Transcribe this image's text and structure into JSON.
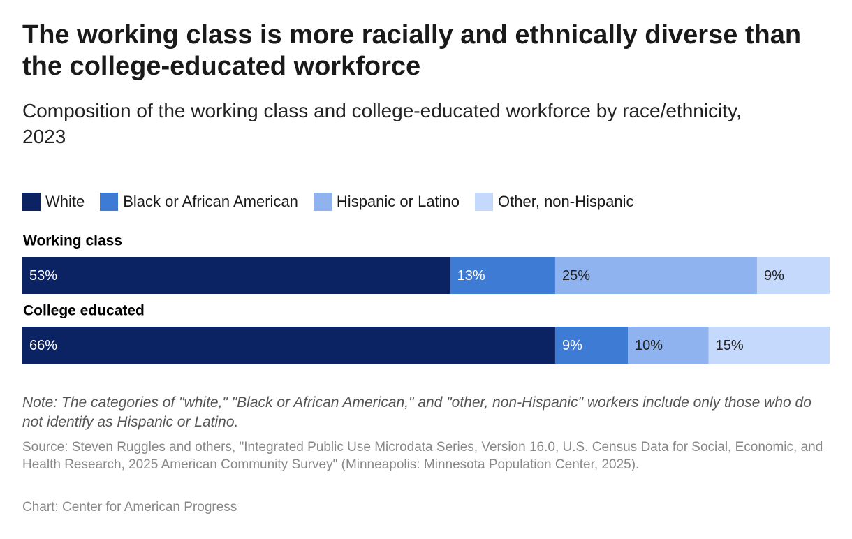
{
  "chart_data": {
    "type": "bar",
    "orientation": "horizontal",
    "stacked": true,
    "title": "The working class is more racially and ethnically diverse than the college-educated workforce",
    "subtitle": "Composition of the working class and college-educated workforce by race/ethnicity, 2023",
    "categories": [
      "Working class",
      "College educated"
    ],
    "series": [
      {
        "name": "White",
        "color": "#0c2363",
        "values": [
          53,
          66
        ],
        "value_labels": [
          "53%",
          "66%"
        ]
      },
      {
        "name": "Black or African American",
        "color": "#3e7bd4",
        "values": [
          13,
          9
        ],
        "value_labels": [
          "13%",
          "9%"
        ]
      },
      {
        "name": "Hispanic or Latino",
        "color": "#8fb3ee",
        "values": [
          25,
          10
        ],
        "value_labels": [
          "25%",
          "10%"
        ]
      },
      {
        "name": "Other, non-Hispanic",
        "color": "#c5d9fc",
        "values": [
          9,
          15
        ],
        "value_labels": [
          "9%",
          "15%"
        ]
      }
    ],
    "xlim": [
      0,
      100
    ],
    "note": "Note: The categories of \"white,\" \"Black or African American,\" and \"other, non-Hispanic\" workers include only those who do not identify as Hispanic or Latino.",
    "source": "Source: Steven Ruggles and others, \"Integrated Public Use Microdata Series, Version 16.0, U.S. Census Data for Social, Economic, and Health Research, 2025 American Community Survey\" (Minneapolis: Minnesota Population Center, 2025).",
    "credit": "Chart: Center for American Progress"
  }
}
